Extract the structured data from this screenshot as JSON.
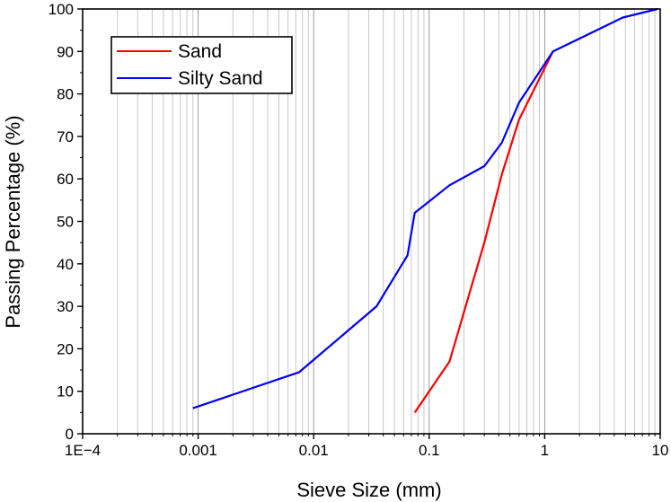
{
  "chart_data": {
    "type": "line",
    "xlabel": "Sieve Size (mm)",
    "ylabel": "Passing Percentage (%)",
    "x_scale": "log",
    "xlim": [
      0.0001,
      10
    ],
    "ylim": [
      0,
      100
    ],
    "grid": "vertical minor and major gridlines (log)",
    "legend_position": "top-left",
    "x_ticks": [
      "1E−4",
      "0.001",
      "0.01",
      "0.1",
      "1",
      "10"
    ],
    "y_ticks": [
      "0",
      "10",
      "20",
      "30",
      "40",
      "50",
      "60",
      "70",
      "80",
      "90",
      "100"
    ],
    "series": [
      {
        "name": "Sand",
        "color": "#ff0000",
        "x": [
          0.075,
          0.15,
          0.3,
          0.425,
          0.6,
          1.18
        ],
        "y": [
          5,
          17,
          45,
          61,
          74,
          90
        ]
      },
      {
        "name": "Silty Sand",
        "color": "#0000ff",
        "x": [
          0.0009,
          0.0075,
          0.035,
          0.065,
          0.075,
          0.15,
          0.3,
          0.425,
          0.6,
          1.18,
          4.75,
          9.5
        ],
        "y": [
          6,
          14.5,
          30,
          42,
          52,
          58.5,
          63,
          68.5,
          78,
          90,
          98,
          100
        ]
      }
    ]
  }
}
